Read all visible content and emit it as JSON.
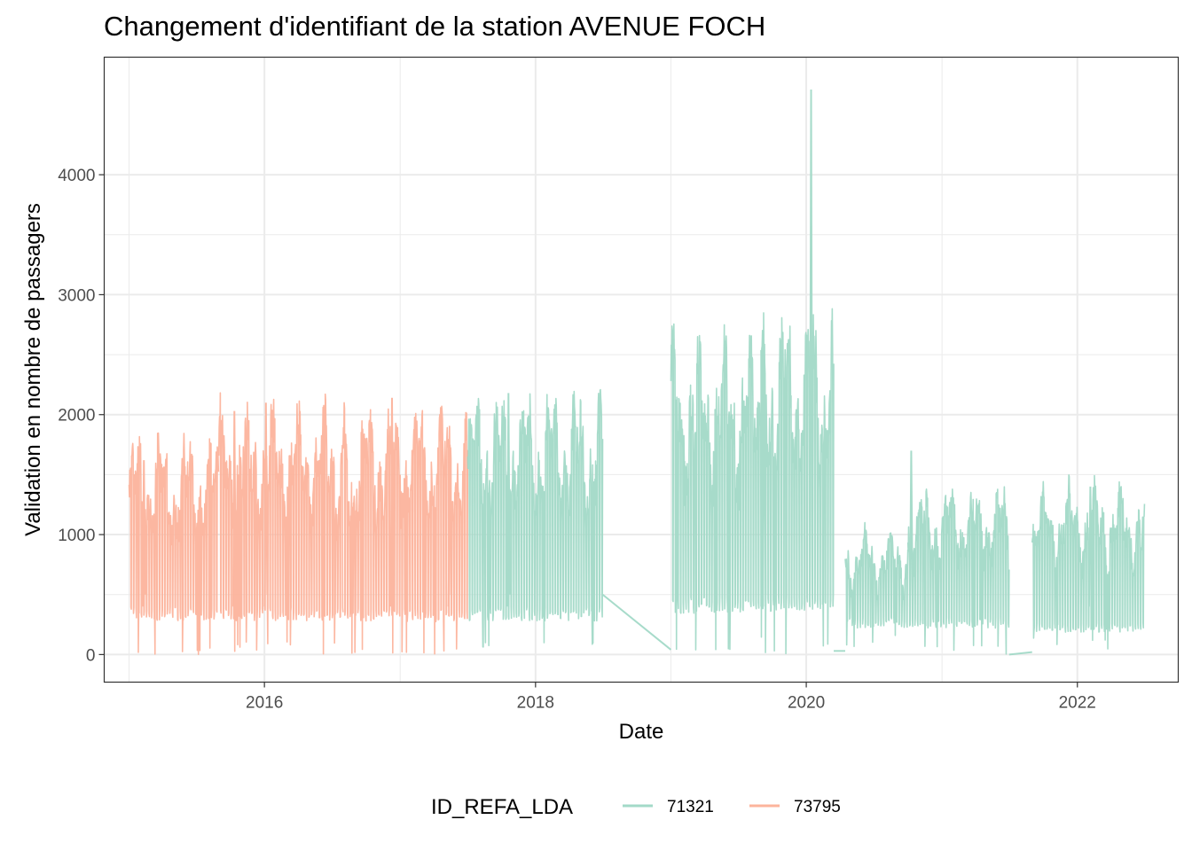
{
  "chart_data": {
    "type": "line",
    "title": "Changement d'identifiant de la station AVENUE FOCH",
    "xlabel": "Date",
    "ylabel": "Validation en nombre de passagers",
    "x_ticks": [
      "2016",
      "2018",
      "2020",
      "2022"
    ],
    "y_ticks": [
      "0",
      "1000",
      "2000",
      "3000",
      "4000"
    ],
    "xlim": [
      "2014-10-26",
      "2022-09-30"
    ],
    "ylim": [
      -230,
      4980
    ],
    "grid": true,
    "legend": {
      "title": "ID_REFA_LDA",
      "position": "bottom"
    },
    "series": [
      {
        "name": "73795",
        "color": "#fcb49c",
        "segments": [
          {
            "start": "2015-01-01",
            "end": "2015-08-31",
            "baseline": 330,
            "peak": 1500,
            "lows": [
              0,
              60
            ]
          },
          {
            "start": "2015-08-31",
            "end": "2016-07-31",
            "baseline": 330,
            "peak": 1700,
            "lows": [
              0,
              120
            ]
          },
          {
            "start": "2016-07-31",
            "end": "2017-07-02",
            "baseline": 320,
            "peak": 1700,
            "lows": [
              0,
              60
            ]
          }
        ],
        "peaks": [
          [
            "2015-02-10",
            1620
          ],
          [
            "2015-10-12",
            2030
          ],
          [
            "2016-01-05",
            2100
          ],
          [
            "2016-12-10",
            2140
          ],
          [
            "2017-05-15",
            1750
          ]
        ]
      },
      {
        "name": "71321",
        "color": "#a3dac8",
        "segments": [
          {
            "start": "2017-07-02",
            "end": "2018-07-01",
            "baseline": 330,
            "peak": 1800,
            "lows": [
              40,
              100
            ]
          },
          {
            "start": "2019-01-01",
            "end": "2019-09-01",
            "baseline": 400,
            "peak": 2150,
            "lows": [
              30,
              60
            ]
          },
          {
            "start": "2019-09-01",
            "end": "2020-03-15",
            "baseline": 420,
            "peak": 2350,
            "lows": [
              0,
              150
            ]
          },
          {
            "start": "2020-04-15",
            "end": "2020-10-01",
            "baseline": 260,
            "peak": 850,
            "lows": [
              30,
              170
            ]
          },
          {
            "start": "2020-10-01",
            "end": "2021-07-01",
            "baseline": 260,
            "peak": 1150,
            "lows": [
              0,
              130
            ]
          },
          {
            "start": "2021-09-01",
            "end": "2022-07-01",
            "baseline": 220,
            "peak": 1150,
            "lows": [
              30,
              170
            ]
          }
        ],
        "connectors": [
          {
            "from": [
              "2018-07-01",
              500
            ],
            "to": [
              "2019-01-01",
              40
            ]
          },
          {
            "from": [
              "2020-03-15",
              30
            ],
            "to": [
              "2020-04-15",
              30
            ]
          },
          {
            "from": [
              "2021-07-01",
              0
            ],
            "to": [
              "2021-09-01",
              20
            ]
          }
        ],
        "peaks": [
          [
            "2017-10-20",
            2180
          ],
          [
            "2019-09-10",
            2590
          ],
          [
            "2020-01-14",
            4710
          ],
          [
            "2020-10-10",
            1700
          ],
          [
            "2022-02-05",
            1400
          ]
        ]
      }
    ]
  }
}
